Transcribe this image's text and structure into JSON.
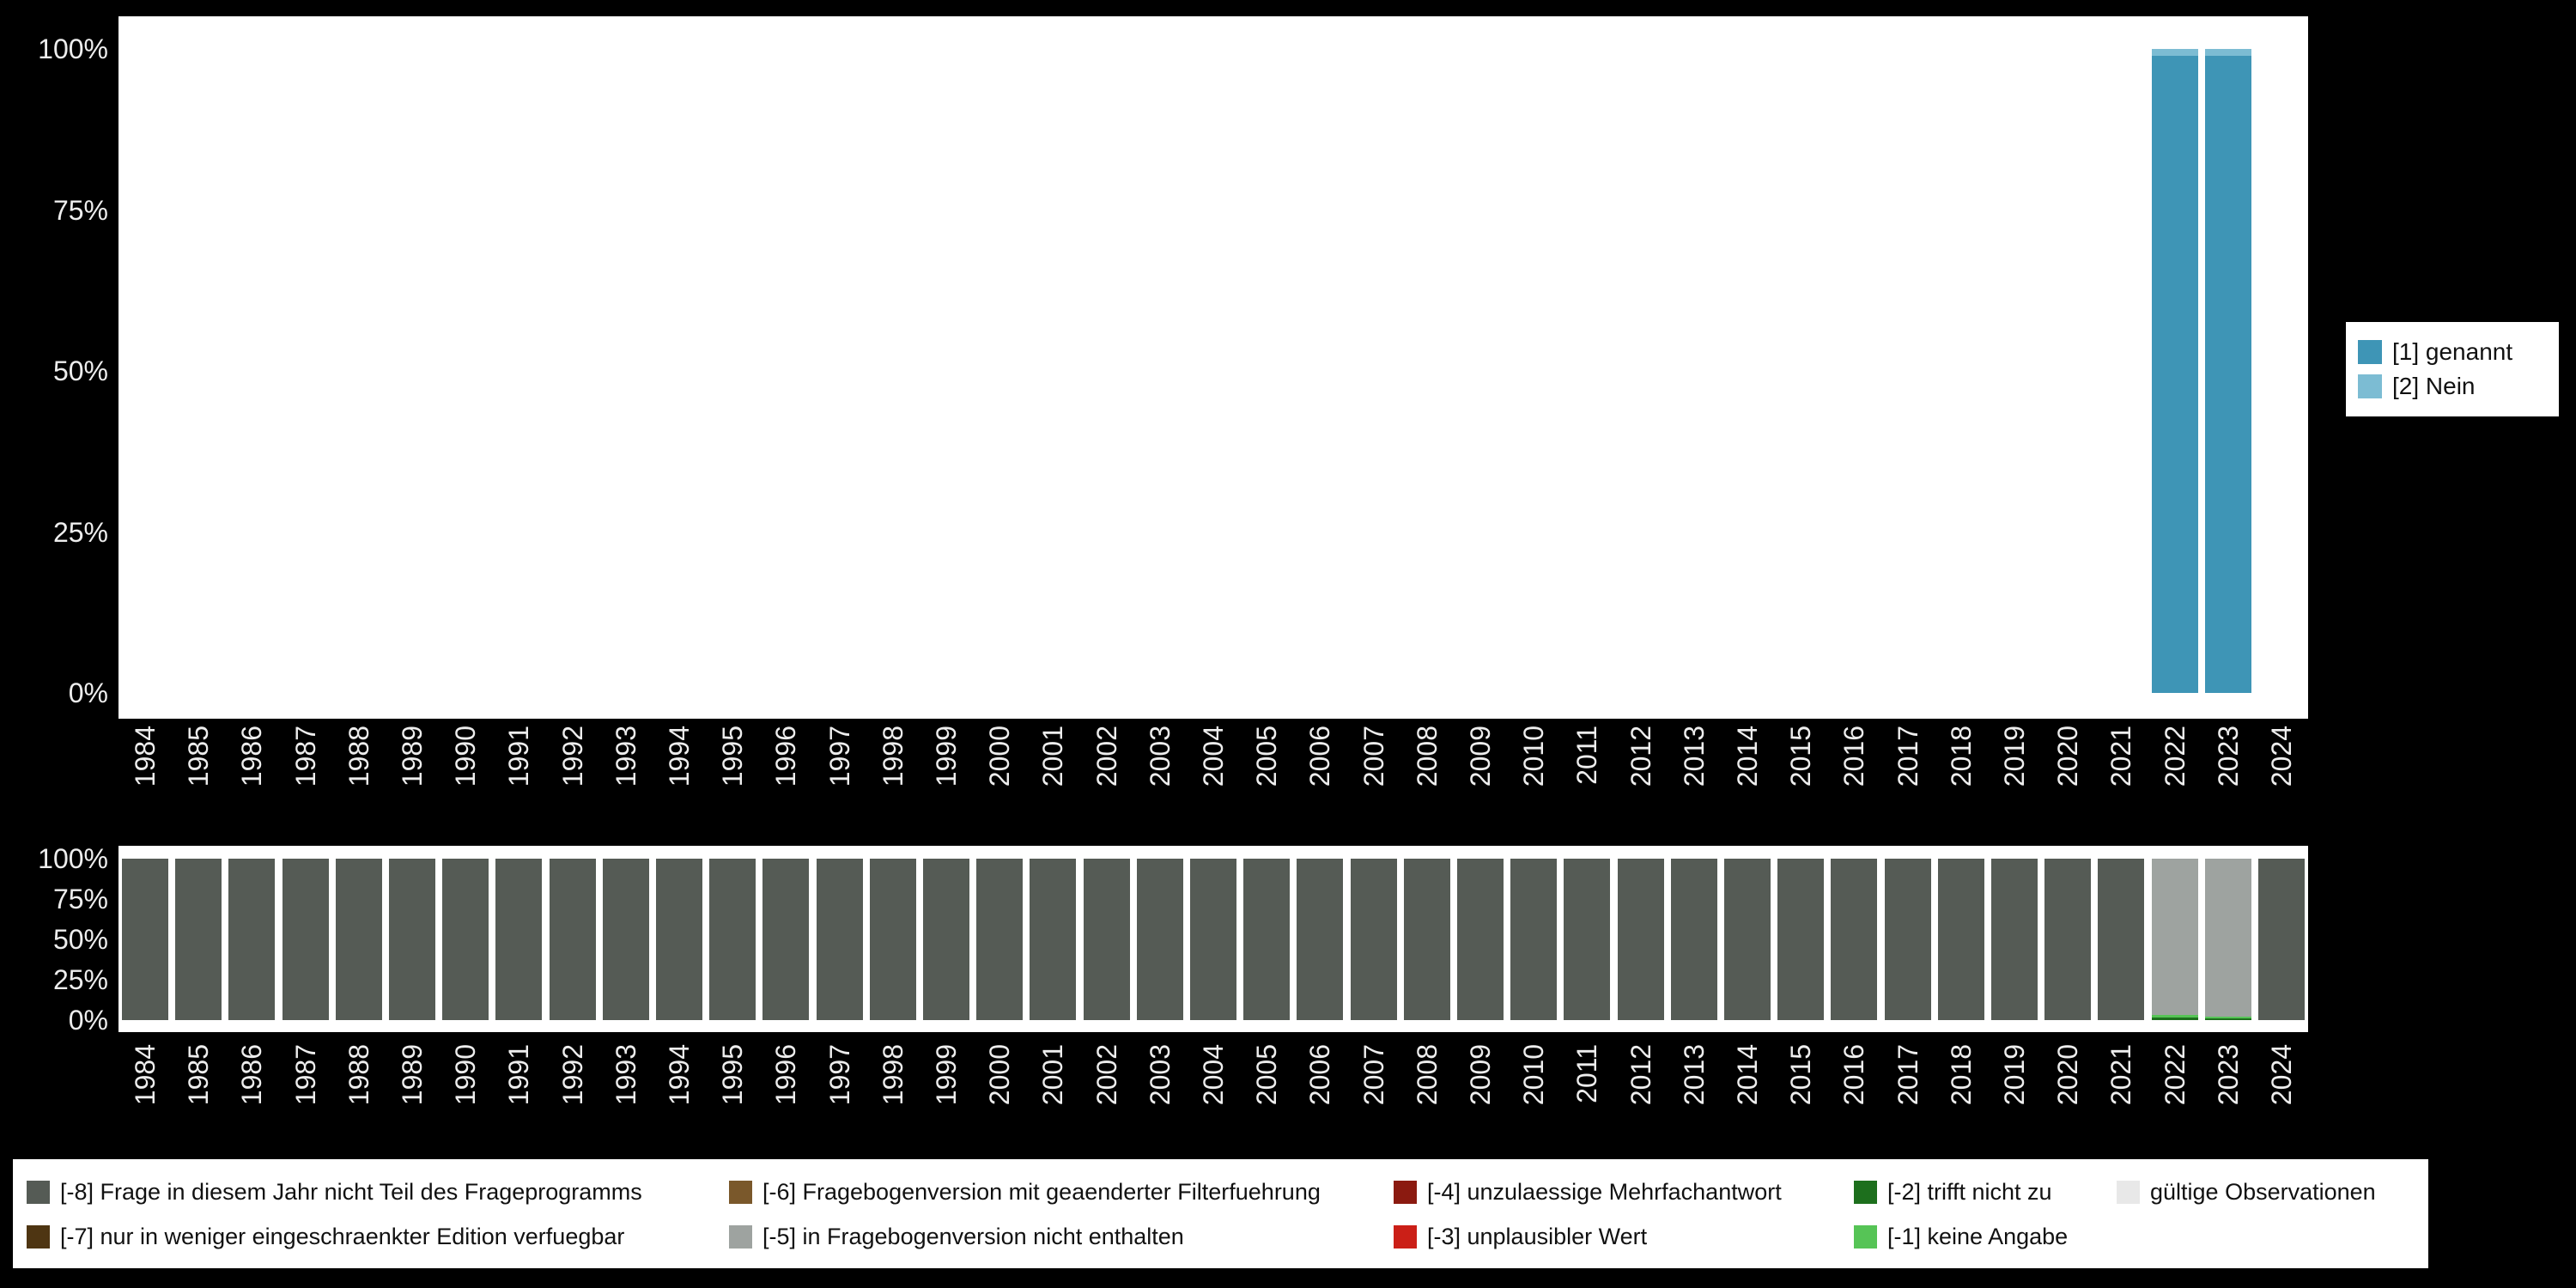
{
  "colors": {
    "background": "#000000",
    "panel_background": "#ffffff",
    "axis_text": "#ededed",
    "legend_text": "#111111"
  },
  "chart_data": [
    {
      "type": "bar",
      "stacked": true,
      "title": "",
      "xlabel": "",
      "ylabel": "",
      "ylim": [
        0,
        100
      ],
      "grid": false,
      "legend_position": "right",
      "y_tick_labels": [
        "100%",
        "75%",
        "50%",
        "25%",
        "0%"
      ],
      "y_tick_values": [
        100,
        75,
        50,
        25,
        0
      ],
      "categories": [
        "1984",
        "1985",
        "1986",
        "1987",
        "1988",
        "1989",
        "1990",
        "1991",
        "1992",
        "1993",
        "1994",
        "1995",
        "1996",
        "1997",
        "1998",
        "1999",
        "2000",
        "2001",
        "2002",
        "2003",
        "2004",
        "2005",
        "2006",
        "2007",
        "2008",
        "2009",
        "2010",
        "2011",
        "2012",
        "2013",
        "2014",
        "2015",
        "2016",
        "2017",
        "2018",
        "2019",
        "2020",
        "2021",
        "2022",
        "2023",
        "2024"
      ],
      "series": [
        {
          "name": "[1] genannt",
          "color": "#3e95b6",
          "values": [
            0,
            0,
            0,
            0,
            0,
            0,
            0,
            0,
            0,
            0,
            0,
            0,
            0,
            0,
            0,
            0,
            0,
            0,
            0,
            0,
            0,
            0,
            0,
            0,
            0,
            0,
            0,
            0,
            0,
            0,
            0,
            0,
            0,
            0,
            0,
            0,
            0,
            0,
            99,
            99,
            0
          ]
        },
        {
          "name": "[2] Nein",
          "color": "#7cbcd3",
          "values": [
            0,
            0,
            0,
            0,
            0,
            0,
            0,
            0,
            0,
            0,
            0,
            0,
            0,
            0,
            0,
            0,
            0,
            0,
            0,
            0,
            0,
            0,
            0,
            0,
            0,
            0,
            0,
            0,
            0,
            0,
            0,
            0,
            0,
            0,
            0,
            0,
            0,
            0,
            1,
            1,
            0
          ]
        }
      ]
    },
    {
      "type": "bar",
      "stacked": true,
      "title": "",
      "xlabel": "",
      "ylabel": "",
      "ylim": [
        0,
        100
      ],
      "grid": false,
      "legend_position": "bottom",
      "y_tick_labels": [
        "100%",
        "75%",
        "50%",
        "25%",
        "0%"
      ],
      "y_tick_values": [
        100,
        75,
        50,
        25,
        0
      ],
      "categories": [
        "1984",
        "1985",
        "1986",
        "1987",
        "1988",
        "1989",
        "1990",
        "1991",
        "1992",
        "1993",
        "1994",
        "1995",
        "1996",
        "1997",
        "1998",
        "1999",
        "2000",
        "2001",
        "2002",
        "2003",
        "2004",
        "2005",
        "2006",
        "2007",
        "2008",
        "2009",
        "2010",
        "2011",
        "2012",
        "2013",
        "2014",
        "2015",
        "2016",
        "2017",
        "2018",
        "2019",
        "2020",
        "2021",
        "2022",
        "2023",
        "2024"
      ],
      "series": [
        {
          "name": "[-2] trifft nicht zu",
          "color": "#1d6f1d",
          "values": [
            0,
            0,
            0,
            0,
            0,
            0,
            0,
            0,
            0,
            0,
            0,
            0,
            0,
            0,
            0,
            0,
            0,
            0,
            0,
            0,
            0,
            0,
            0,
            0,
            0,
            0,
            0,
            0,
            0,
            0,
            0,
            0,
            0,
            0,
            0,
            0,
            0,
            0,
            1.5,
            1,
            0
          ]
        },
        {
          "name": "[-1] keine Angabe",
          "color": "#56c456",
          "values": [
            0,
            0,
            0,
            0,
            0,
            0,
            0,
            0,
            0,
            0,
            0,
            0,
            0,
            0,
            0,
            0,
            0,
            0,
            0,
            0,
            0,
            0,
            0,
            0,
            0,
            0,
            0,
            0,
            0,
            0,
            0,
            0,
            0,
            0,
            0,
            0,
            0,
            0,
            1.5,
            1,
            0
          ]
        },
        {
          "name": "[-5] in Fragebogenversion nicht enthalten",
          "color": "#9ea3a0",
          "values": [
            0,
            0,
            0,
            0,
            0,
            0,
            0,
            0,
            0,
            0,
            0,
            0,
            0,
            0,
            0,
            0,
            0,
            0,
            0,
            0,
            0,
            0,
            0,
            0,
            0,
            0,
            0,
            0,
            0,
            0,
            0,
            0,
            0,
            0,
            0,
            0,
            0,
            0,
            97,
            98,
            0
          ]
        },
        {
          "name": "[-8] Frage in diesem Jahr nicht Teil des Frageprogramms",
          "color": "#555b55",
          "values": [
            100,
            100,
            100,
            100,
            100,
            100,
            100,
            100,
            100,
            100,
            100,
            100,
            100,
            100,
            100,
            100,
            100,
            100,
            100,
            100,
            100,
            100,
            100,
            100,
            100,
            100,
            100,
            100,
            100,
            100,
            100,
            100,
            100,
            100,
            100,
            100,
            100,
            100,
            0,
            0,
            100
          ]
        }
      ]
    }
  ],
  "missing_legend": {
    "columns": [
      [
        {
          "label": "[-8] Frage in diesem Jahr nicht Teil des Frageprogramms",
          "color": "#555b55"
        },
        {
          "label": "[-7] nur in weniger eingeschraenkter Edition verfuegbar",
          "color": "#4e3512"
        }
      ],
      [
        {
          "label": "[-6] Fragebogenversion mit geaenderter Filterfuehrung",
          "color": "#7a582b"
        },
        {
          "label": "[-5] in Fragebogenversion nicht enthalten",
          "color": "#9ea3a0"
        }
      ],
      [
        {
          "label": "[-4] unzulaessige Mehrfachantwort",
          "color": "#8b1a10"
        },
        {
          "label": "[-3] unplausibler Wert",
          "color": "#cb1f17"
        }
      ],
      [
        {
          "label": "[-2] trifft nicht zu",
          "color": "#1d6f1d"
        },
        {
          "label": "[-1] keine Angabe",
          "color": "#56c456"
        }
      ],
      [
        {
          "label": "gültige Observationen",
          "color": "#e8e8e8"
        }
      ]
    ]
  }
}
